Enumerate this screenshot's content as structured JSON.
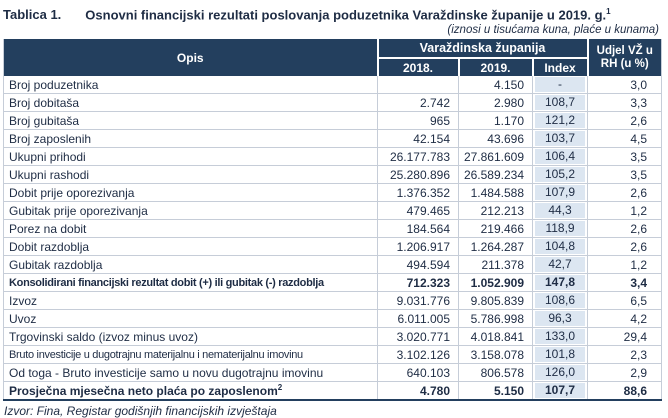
{
  "title": {
    "label": "Tablica 1.",
    "text": "Osnovni financijski rezultati poslovanja poduzetnika Varaždinske županije u 2019. g.",
    "superscript": "1"
  },
  "subtitle": "(iznosi u tisućama kuna, plaće u kunama)",
  "colors": {
    "header_bg": "#233F5E",
    "index_column_bg": "#DCE6F1",
    "text": "#1E2C44",
    "grid": "#C6CDD8"
  },
  "table": {
    "col_group_header": "Varaždinska županija",
    "col_headers": {
      "opis": "Opis",
      "y2018": "2018.",
      "y2019": "2019.",
      "index": "Index",
      "share": "Udjel VŽ u RH (u %)"
    },
    "rows": [
      {
        "label": "Broj poduzetnika",
        "y2018": "",
        "y2019": "4.150",
        "index": "-",
        "share": "3,0",
        "bold": false
      },
      {
        "label": "Broj dobitaša",
        "y2018": "2.742",
        "y2019": "2.980",
        "index": "108,7",
        "share": "3,3",
        "bold": false
      },
      {
        "label": "Broj gubitaša",
        "y2018": "965",
        "y2019": "1.170",
        "index": "121,2",
        "share": "2,6",
        "bold": false
      },
      {
        "label": "Broj zaposlenih",
        "y2018": "42.154",
        "y2019": "43.696",
        "index": "103,7",
        "share": "4,5",
        "bold": false
      },
      {
        "label": "Ukupni prihodi",
        "y2018": "26.177.783",
        "y2019": "27.861.609",
        "index": "106,4",
        "share": "3,5",
        "bold": false
      },
      {
        "label": "Ukupni rashodi",
        "y2018": "25.280.896",
        "y2019": "26.589.234",
        "index": "105,2",
        "share": "3,5",
        "bold": false
      },
      {
        "label": "Dobit prije oporezivanja",
        "y2018": "1.376.352",
        "y2019": "1.484.588",
        "index": "107,9",
        "share": "2,6",
        "bold": false
      },
      {
        "label": "Gubitak prije oporezivanja",
        "y2018": "479.465",
        "y2019": "212.213",
        "index": "44,3",
        "share": "1,2",
        "bold": false
      },
      {
        "label": "Porez na dobit",
        "y2018": "184.564",
        "y2019": "219.466",
        "index": "118,9",
        "share": "2,6",
        "bold": false
      },
      {
        "label": "Dobit razdoblja",
        "y2018": "1.206.917",
        "y2019": "1.264.287",
        "index": "104,8",
        "share": "2,6",
        "bold": false
      },
      {
        "label": "Gubitak razdoblja",
        "y2018": "494.594",
        "y2019": "211.378",
        "index": "42,7",
        "share": "1,2",
        "bold": false
      },
      {
        "label": "Konsolidirani financijski rezultat dobit (+) ili gubitak (-) razdoblja",
        "y2018": "712.323",
        "y2019": "1.052.909",
        "index": "147,8",
        "share": "3,4",
        "bold": true
      },
      {
        "label": "Izvoz",
        "y2018": "9.031.776",
        "y2019": "9.805.839",
        "index": "108,6",
        "share": "6,5",
        "bold": false
      },
      {
        "label": "Uvoz",
        "y2018": "6.011.005",
        "y2019": "5.786.998",
        "index": "96,3",
        "share": "4,2",
        "bold": false
      },
      {
        "label": "Trgovinski saldo (izvoz minus uvoz)",
        "y2018": "3.020.771",
        "y2019": "4.018.841",
        "index": "133,0",
        "share": "29,4",
        "bold": false
      },
      {
        "label": "Bruto investicije u dugotrajnu materijalnu i nematerijalnu imovinu",
        "y2018": "3.102.126",
        "y2019": "3.158.078",
        "index": "101,8",
        "share": "2,3",
        "bold": false
      },
      {
        "label": "Od toga - Bruto investicije samo u novu dugotrajnu imovinu",
        "y2018": "640.103",
        "y2019": "806.578",
        "index": "126,0",
        "share": "2,9",
        "bold": false
      },
      {
        "label": "Prosječna mjesečna neto plaća po zaposlenom",
        "sup": "2",
        "y2018": "4.780",
        "y2019": "5.150",
        "index": "107,7",
        "share": "88,6",
        "bold": true
      }
    ]
  },
  "footer": "Izvor: Fina, Registar godišnjih financijskih izvještaja"
}
